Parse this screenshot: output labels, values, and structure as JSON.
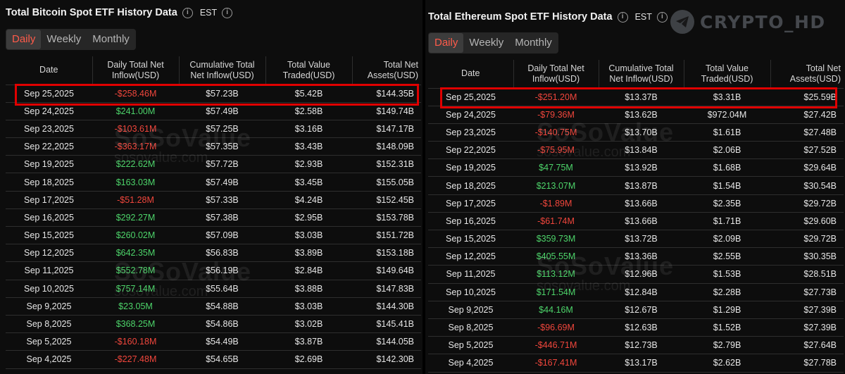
{
  "watermark": {
    "name": "SoSoValue",
    "url": "sosovalue.com",
    "corner_text": "CRYPTO_HD",
    "corner_icon": "telegram-icon"
  },
  "colors": {
    "positive": "#4dd46a",
    "negative": "#f0463c",
    "active_tab": "#ff5b4a",
    "highlight": "#e00000"
  },
  "btc": {
    "title": "Total Bitcoin Spot ETF History Data",
    "timezone": "EST",
    "tabs": [
      "Daily",
      "Weekly",
      "Monthly"
    ],
    "active_tab": "Daily",
    "columns": [
      "Date",
      "Daily Total Net Inflow(USD)",
      "Cumulative Total Net Inflow(USD)",
      "Total Value Traded(USD)",
      "Total Net Assets(USD)"
    ],
    "rows": [
      [
        "Sep 25,2025",
        "-$258.46M",
        "$57.23B",
        "$5.42B",
        "$144.35B"
      ],
      [
        "Sep 24,2025",
        "$241.00M",
        "$57.49B",
        "$2.58B",
        "$149.74B"
      ],
      [
        "Sep 23,2025",
        "-$103.61M",
        "$57.25B",
        "$3.16B",
        "$147.17B"
      ],
      [
        "Sep 22,2025",
        "-$363.17M",
        "$57.35B",
        "$3.43B",
        "$148.09B"
      ],
      [
        "Sep 19,2025",
        "$222.62M",
        "$57.72B",
        "$2.93B",
        "$152.31B"
      ],
      [
        "Sep 18,2025",
        "$163.03M",
        "$57.49B",
        "$3.45B",
        "$155.05B"
      ],
      [
        "Sep 17,2025",
        "-$51.28M",
        "$57.33B",
        "$4.24B",
        "$152.45B"
      ],
      [
        "Sep 16,2025",
        "$292.27M",
        "$57.38B",
        "$2.95B",
        "$153.78B"
      ],
      [
        "Sep 15,2025",
        "$260.02M",
        "$57.09B",
        "$3.03B",
        "$151.72B"
      ],
      [
        "Sep 12,2025",
        "$642.35M",
        "$56.83B",
        "$3.89B",
        "$153.18B"
      ],
      [
        "Sep 11,2025",
        "$552.78M",
        "$56.19B",
        "$2.84B",
        "$149.64B"
      ],
      [
        "Sep 10,2025",
        "$757.14M",
        "$55.64B",
        "$3.88B",
        "$147.83B"
      ],
      [
        "Sep 9,2025",
        "$23.05M",
        "$54.88B",
        "$3.03B",
        "$144.30B"
      ],
      [
        "Sep 8,2025",
        "$368.25M",
        "$54.86B",
        "$3.02B",
        "$145.41B"
      ],
      [
        "Sep 5,2025",
        "-$160.18M",
        "$54.49B",
        "$3.87B",
        "$144.05B"
      ],
      [
        "Sep 4,2025",
        "-$227.48M",
        "$54.65B",
        "$2.69B",
        "$142.30B"
      ]
    ]
  },
  "eth": {
    "title": "Total Ethereum Spot ETF History Data",
    "timezone": "EST",
    "tabs": [
      "Daily",
      "Weekly",
      "Monthly"
    ],
    "active_tab": "Daily",
    "columns": [
      "Date",
      "Daily Total Net Inflow(USD)",
      "Cumulative Total Net Inflow(USD)",
      "Total Value Traded(USD)",
      "Total Net Assets(USD)"
    ],
    "rows": [
      [
        "Sep 25,2025",
        "-$251.20M",
        "$13.37B",
        "$3.31B",
        "$25.59B"
      ],
      [
        "Sep 24,2025",
        "-$79.36M",
        "$13.62B",
        "$972.04M",
        "$27.42B"
      ],
      [
        "Sep 23,2025",
        "-$140.75M",
        "$13.70B",
        "$1.61B",
        "$27.48B"
      ],
      [
        "Sep 22,2025",
        "-$75.95M",
        "$13.84B",
        "$2.06B",
        "$27.52B"
      ],
      [
        "Sep 19,2025",
        "$47.75M",
        "$13.92B",
        "$1.68B",
        "$29.64B"
      ],
      [
        "Sep 18,2025",
        "$213.07M",
        "$13.87B",
        "$1.54B",
        "$30.54B"
      ],
      [
        "Sep 17,2025",
        "-$1.89M",
        "$13.66B",
        "$2.35B",
        "$29.72B"
      ],
      [
        "Sep 16,2025",
        "-$61.74M",
        "$13.66B",
        "$1.71B",
        "$29.60B"
      ],
      [
        "Sep 15,2025",
        "$359.73M",
        "$13.72B",
        "$2.09B",
        "$29.72B"
      ],
      [
        "Sep 12,2025",
        "$405.55M",
        "$13.36B",
        "$2.55B",
        "$30.35B"
      ],
      [
        "Sep 11,2025",
        "$113.12M",
        "$12.96B",
        "$1.53B",
        "$28.51B"
      ],
      [
        "Sep 10,2025",
        "$171.54M",
        "$12.84B",
        "$2.28B",
        "$27.73B"
      ],
      [
        "Sep 9,2025",
        "$44.16M",
        "$12.67B",
        "$1.29B",
        "$27.39B"
      ],
      [
        "Sep 8,2025",
        "-$96.69M",
        "$12.63B",
        "$1.52B",
        "$27.39B"
      ],
      [
        "Sep 5,2025",
        "-$446.71M",
        "$12.73B",
        "$2.79B",
        "$27.64B"
      ],
      [
        "Sep 4,2025",
        "-$167.41M",
        "$13.17B",
        "$2.62B",
        "$27.78B"
      ]
    ]
  }
}
